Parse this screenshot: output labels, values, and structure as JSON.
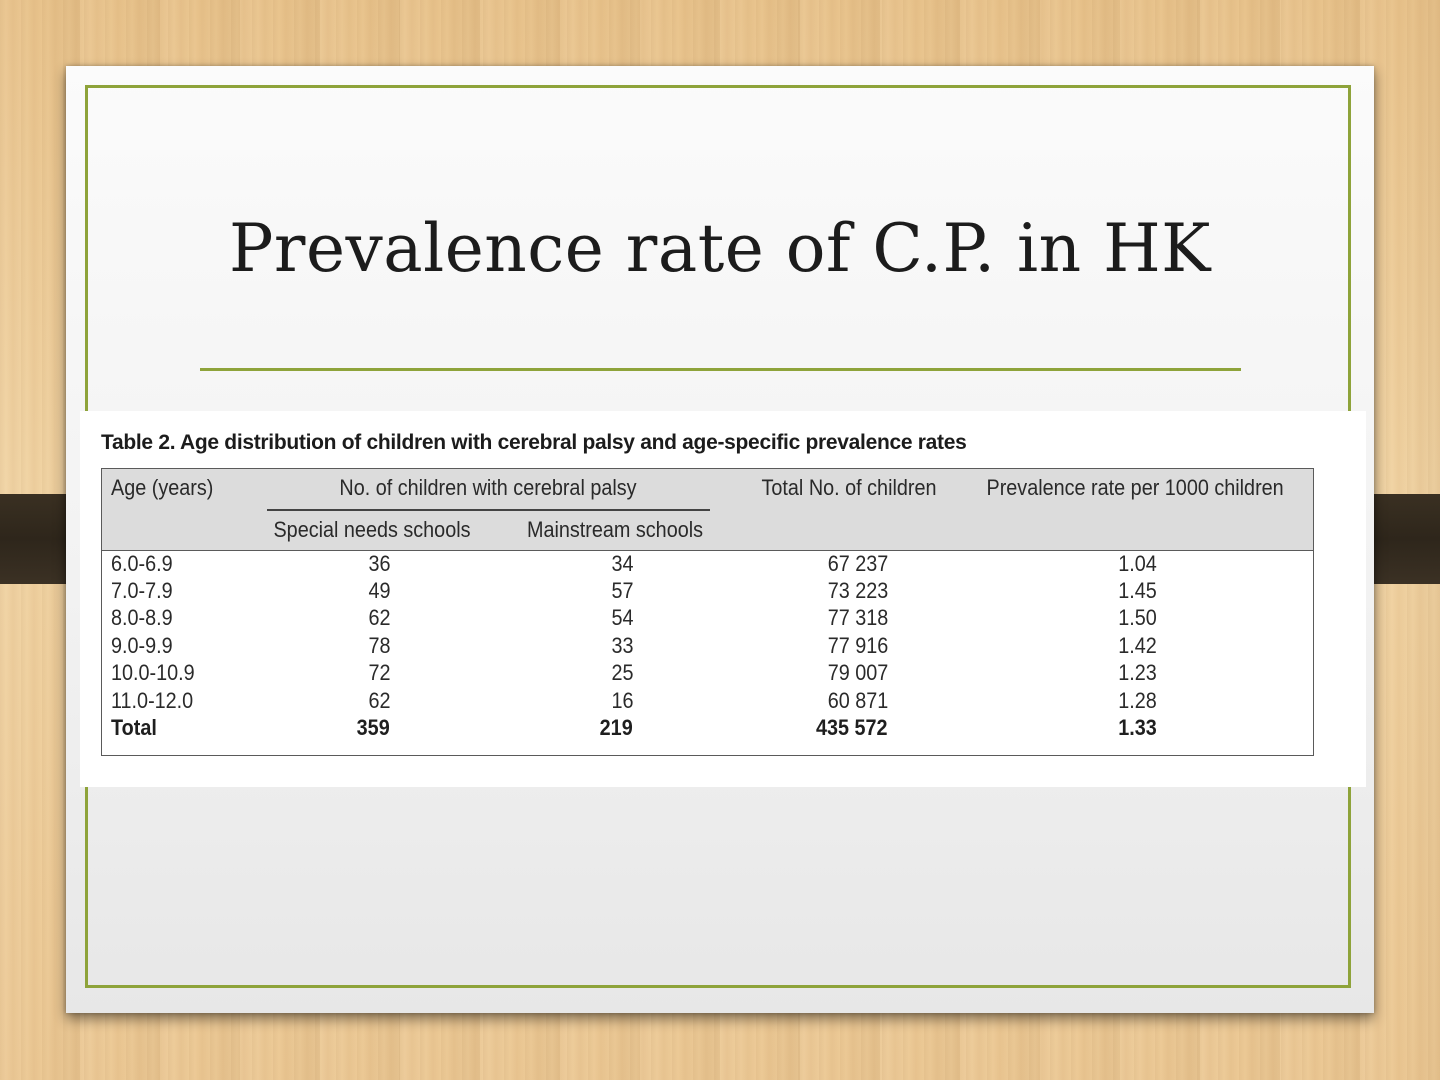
{
  "slide": {
    "title": "Prevalence rate of C.P. in HK",
    "accent_color": "#8ea33a"
  },
  "table": {
    "caption": "Table 2.  Age distribution of children with cerebral palsy and age-specific prevalence rates",
    "headers": {
      "age": "Age (years)",
      "group": "No. of children with cerebral palsy",
      "special": "Special needs schools",
      "mainstream": "Mainstream schools",
      "total": "Total No. of children",
      "rate": "Prevalence rate per 1000 children"
    },
    "rows": [
      {
        "age": "6.0-6.9",
        "special": "36",
        "mainstream": "34",
        "total": "67 237",
        "rate": "1.04"
      },
      {
        "age": "7.0-7.9",
        "special": "49",
        "mainstream": "57",
        "total": "73 223",
        "rate": "1.45"
      },
      {
        "age": "8.0-8.9",
        "special": "62",
        "mainstream": "54",
        "total": "77 318",
        "rate": "1.50"
      },
      {
        "age": "9.0-9.9",
        "special": "78",
        "mainstream": "33",
        "total": "77 916",
        "rate": "1.42"
      },
      {
        "age": "10.0-10.9",
        "special": "72",
        "mainstream": "25",
        "total": "79 007",
        "rate": "1.23"
      },
      {
        "age": "11.0-12.0",
        "special": "62",
        "mainstream": "16",
        "total": "60 871",
        "rate": "1.28"
      },
      {
        "age": "Total",
        "special": "359",
        "mainstream": "219",
        "total": "435 572",
        "rate": "1.33"
      }
    ]
  }
}
